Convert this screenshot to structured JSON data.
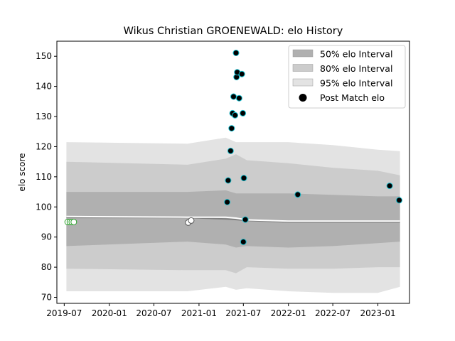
{
  "chart_data": {
    "type": "scatter",
    "title": "Wikus Christian GROENEWALD: elo History",
    "xlabel": "",
    "ylabel": "elo score",
    "xlim": [
      "2019-06-01",
      "2023-05-10"
    ],
    "ylim": [
      68,
      155
    ],
    "x_ticks": [
      "2019-07",
      "2020-01",
      "2020-07",
      "2021-01",
      "2021-07",
      "2022-01",
      "2022-07",
      "2023-01"
    ],
    "y_ticks": [
      70,
      80,
      90,
      100,
      110,
      120,
      130,
      140,
      150
    ],
    "grid": false,
    "legend_position": "upper right",
    "legend": [
      {
        "label": "50% elo Interval",
        "color": "#b0b0b0"
      },
      {
        "label": "80% elo Interval",
        "color": "#cccccc"
      },
      {
        "label": "95% elo Interval",
        "color": "#e3e3e3"
      },
      {
        "label": "Post Match elo",
        "color": "#000000"
      }
    ],
    "colors": {
      "band_50": "#b0b0b0",
      "band_80": "#cccccc",
      "band_95": "#e3e3e3",
      "median_line": "#808080",
      "mean_line": "#ffffff",
      "match_point_fill": "#000000",
      "match_point_edge": "#17becf",
      "early_point_edge": "#2ca02c",
      "gap_point_edge": "#555555"
    },
    "bands": {
      "x": [
        "2019-07-10",
        "2020-11-15",
        "2021-04-20",
        "2021-06-01",
        "2021-07-15",
        "2022-01-01",
        "2022-07-01",
        "2023-01-01",
        "2023-04-01"
      ],
      "p95_upper": [
        121.5,
        121,
        123,
        121.5,
        121.5,
        121.5,
        120.5,
        119,
        118.5
      ],
      "p95_lower": [
        72,
        72,
        73.5,
        72.5,
        73,
        72,
        71.5,
        71.5,
        73.5
      ],
      "p80_upper": [
        115,
        114,
        116,
        117.5,
        115.5,
        114.5,
        113,
        112,
        110.5
      ],
      "p80_lower": [
        79.5,
        79,
        79,
        78,
        80,
        79.5,
        79.5,
        80,
        80
      ],
      "p50_upper": [
        105,
        105,
        105.5,
        104.5,
        104.5,
        104.5,
        104,
        103.5,
        103.5
      ],
      "p50_lower": [
        87,
        88.5,
        87.5,
        86.5,
        87,
        86.5,
        87,
        88,
        88.5
      ],
      "median": [
        96.5,
        96.5,
        96,
        95.8,
        95.5,
        95,
        95,
        95,
        95
      ],
      "mean": [
        96.8,
        96.6,
        96.6,
        96.3,
        95.7,
        95.3,
        95.3,
        95.3,
        95.3
      ]
    },
    "series": [
      {
        "name": "Post Match elo",
        "points": [
          {
            "x": "2021-04-26",
            "y": 101.6
          },
          {
            "x": "2021-04-30",
            "y": 108.8
          },
          {
            "x": "2021-05-10",
            "y": 118.6
          },
          {
            "x": "2021-05-14",
            "y": 126.1
          },
          {
            "x": "2021-05-18",
            "y": 131.1
          },
          {
            "x": "2021-05-22",
            "y": 136.6
          },
          {
            "x": "2021-05-28",
            "y": 130.4
          },
          {
            "x": "2021-06-01",
            "y": 151.1
          },
          {
            "x": "2021-06-03",
            "y": 143.1
          },
          {
            "x": "2021-06-06",
            "y": 144.7
          },
          {
            "x": "2021-06-14",
            "y": 136.1
          },
          {
            "x": "2021-06-25",
            "y": 144.1
          },
          {
            "x": "2021-06-29",
            "y": 131.1
          },
          {
            "x": "2021-07-01",
            "y": 88.4
          },
          {
            "x": "2021-07-03",
            "y": 109.6
          },
          {
            "x": "2021-07-09",
            "y": 95.8
          },
          {
            "x": "2022-02-08",
            "y": 104.1
          },
          {
            "x": "2023-02-18",
            "y": 107.0
          },
          {
            "x": "2023-03-29",
            "y": 102.2
          }
        ]
      },
      {
        "points": [
          {
            "x": "2019-07-15",
            "y": 95.0
          },
          {
            "x": "2019-07-24",
            "y": 95.0
          },
          {
            "x": "2019-08-01",
            "y": 95.0
          },
          {
            "x": "2019-08-09",
            "y": 95.0
          }
        ]
      },
      {
        "points": [
          {
            "x": "2020-11-18",
            "y": 94.8
          },
          {
            "x": "2020-11-30",
            "y": 95.5
          }
        ]
      }
    ]
  }
}
